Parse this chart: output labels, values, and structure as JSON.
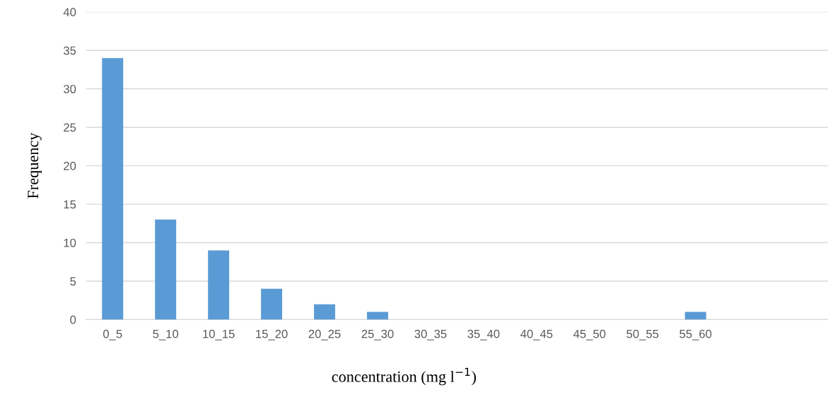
{
  "chart_data": {
    "type": "bar",
    "xlabel": "concentration (mg l$^{−1}$)",
    "ylabel": "Frequency",
    "categories": [
      "0_5",
      "5_10",
      "10_15",
      "15_20",
      "20_25",
      "25_30",
      "30_35",
      "35_40",
      "40_45",
      "45_50",
      "50_55",
      "55_60",
      null,
      null
    ],
    "values": [
      34,
      13,
      9,
      4,
      2,
      1,
      0,
      0,
      0,
      0,
      0,
      1,
      0,
      0
    ],
    "color": "#5b9bd5",
    "ylim": [
      0,
      40
    ],
    "yticks": [
      0,
      5,
      10,
      15,
      20,
      25,
      30,
      35,
      40
    ],
    "grid": "y",
    "legend": false
  }
}
